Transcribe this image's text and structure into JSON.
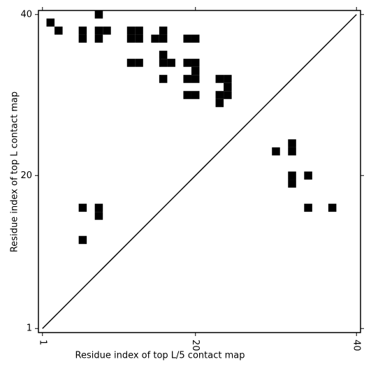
{
  "chart_data": {
    "type": "contact-map",
    "xlabel": "Residue index of top L/5 contact map",
    "ylabel": "Residue index of top L contact map",
    "xlim": [
      0.5,
      40.5
    ],
    "ylim": [
      0.5,
      40.5
    ],
    "xticks": [
      1,
      20,
      40
    ],
    "yticks": [
      1,
      20,
      40
    ],
    "diagonal": true,
    "series": [
      {
        "color": "#000000",
        "x": [
          8,
          2,
          3,
          6,
          6,
          8,
          8,
          9,
          12,
          13,
          12,
          13,
          16,
          15,
          16,
          19,
          20,
          12,
          13,
          16,
          16,
          17,
          19,
          20,
          20,
          19,
          20,
          16,
          23,
          24,
          24,
          23,
          24,
          23,
          19,
          20,
          6,
          8,
          8,
          6
        ],
        "y": [
          40,
          39,
          38,
          38,
          37,
          38,
          37,
          38,
          38,
          38,
          37,
          37,
          38,
          37,
          37,
          37,
          37,
          34,
          34,
          35,
          34,
          34,
          34,
          34,
          33,
          32,
          32,
          32,
          32,
          32,
          31,
          30,
          30,
          29,
          30,
          30,
          16,
          16,
          15,
          12
        ]
      },
      {
        "color": "#000000",
        "x": [
          30,
          32,
          32,
          32,
          32,
          34,
          34,
          37
        ],
        "y": [
          23,
          24,
          23,
          20,
          19,
          20,
          16,
          16
        ]
      }
    ]
  }
}
